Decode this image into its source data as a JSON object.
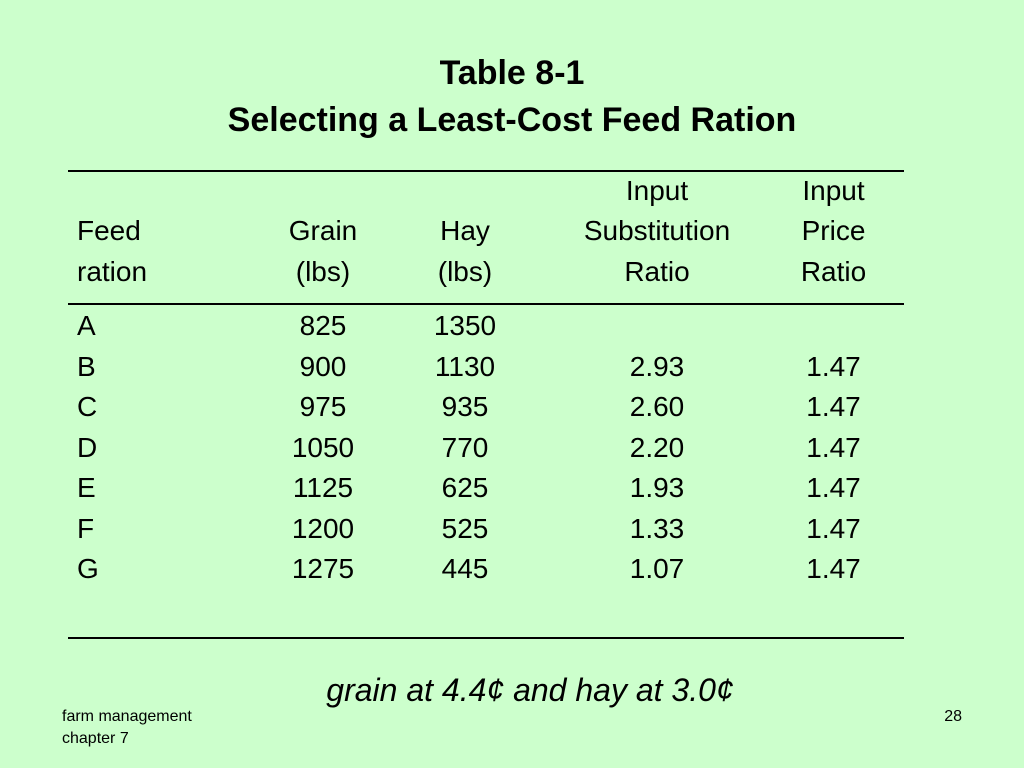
{
  "title_line1": "Table 8-1",
  "title_line2": "Selecting a Least-Cost Feed Ration",
  "headers": {
    "feed": [
      "Feed",
      "ration"
    ],
    "grain": [
      "Grain",
      "(lbs)"
    ],
    "hay": [
      "Hay",
      "(lbs)"
    ],
    "isr": [
      "Input",
      "Substitution",
      "Ratio"
    ],
    "ipr": [
      "Input",
      "Price",
      "Ratio"
    ]
  },
  "rows": [
    {
      "feed": "A",
      "grain": "825",
      "hay": "1350",
      "isr": "",
      "ipr": ""
    },
    {
      "feed": "B",
      "grain": "900",
      "hay": "1130",
      "isr": "2.93",
      "ipr": "1.47"
    },
    {
      "feed": "C",
      "grain": "975",
      "hay": "935",
      "isr": "2.60",
      "ipr": "1.47"
    },
    {
      "feed": "D",
      "grain": "1050",
      "hay": "770",
      "isr": "2.20",
      "ipr": "1.47"
    },
    {
      "feed": "E",
      "grain": "1125",
      "hay": "625",
      "isr": "1.93",
      "ipr": "1.47"
    },
    {
      "feed": "F",
      "grain": "1200",
      "hay": "525",
      "isr": "1.33",
      "ipr": "1.47"
    },
    {
      "feed": "G",
      "grain": "1275",
      "hay": "445",
      "isr": "1.07",
      "ipr": "1.47"
    }
  ],
  "note": "grain at 4.4¢ and hay at 3.0¢",
  "footer": {
    "line1": "farm management",
    "line2": "chapter 7",
    "page": "28"
  }
}
